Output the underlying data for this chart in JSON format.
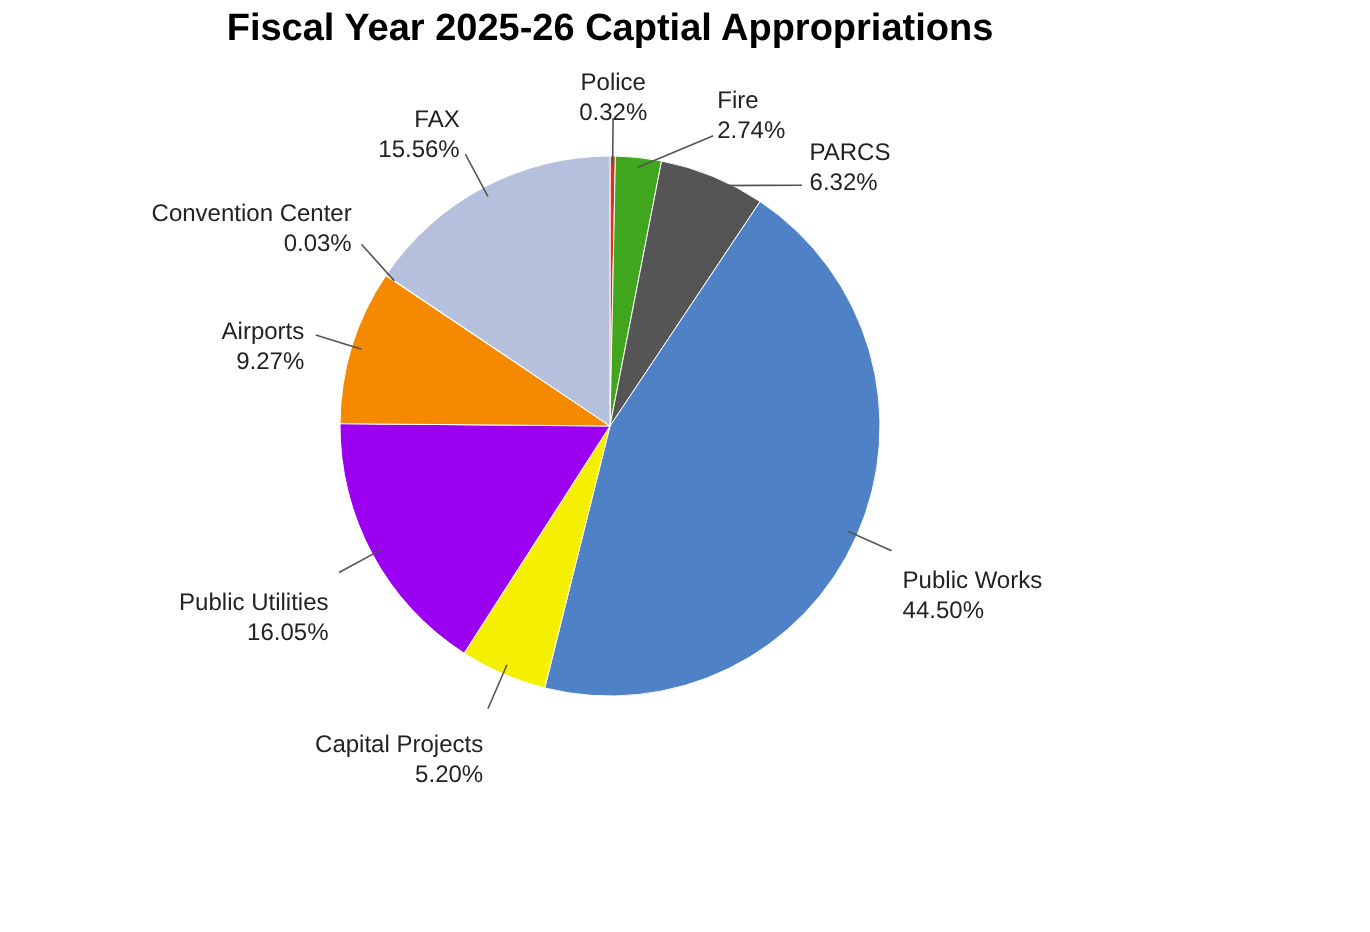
{
  "chart_data": {
    "type": "pie",
    "title": "Fiscal Year 2025-26 Captial Appropriations",
    "categories": [
      "Police",
      "Fire",
      "PARCS",
      "Public Works",
      "Capital Projects",
      "Public Utilities",
      "Airports",
      "Convention Center",
      "FAX"
    ],
    "values": [
      0.32,
      2.74,
      6.32,
      44.5,
      5.2,
      16.05,
      9.27,
      0.03,
      15.56
    ],
    "value_labels": [
      "0.32%",
      "2.74%",
      "6.32%",
      "44.50%",
      "5.20%",
      "16.05%",
      "9.27%",
      "0.03%",
      "15.56%"
    ],
    "colors": [
      "#e0301e",
      "#3fa61d",
      "#555555",
      "#4f81c7",
      "#f5f000",
      "#9b00f0",
      "#f58a00",
      "#8a9bc4",
      "#b4c0dc"
    ]
  }
}
